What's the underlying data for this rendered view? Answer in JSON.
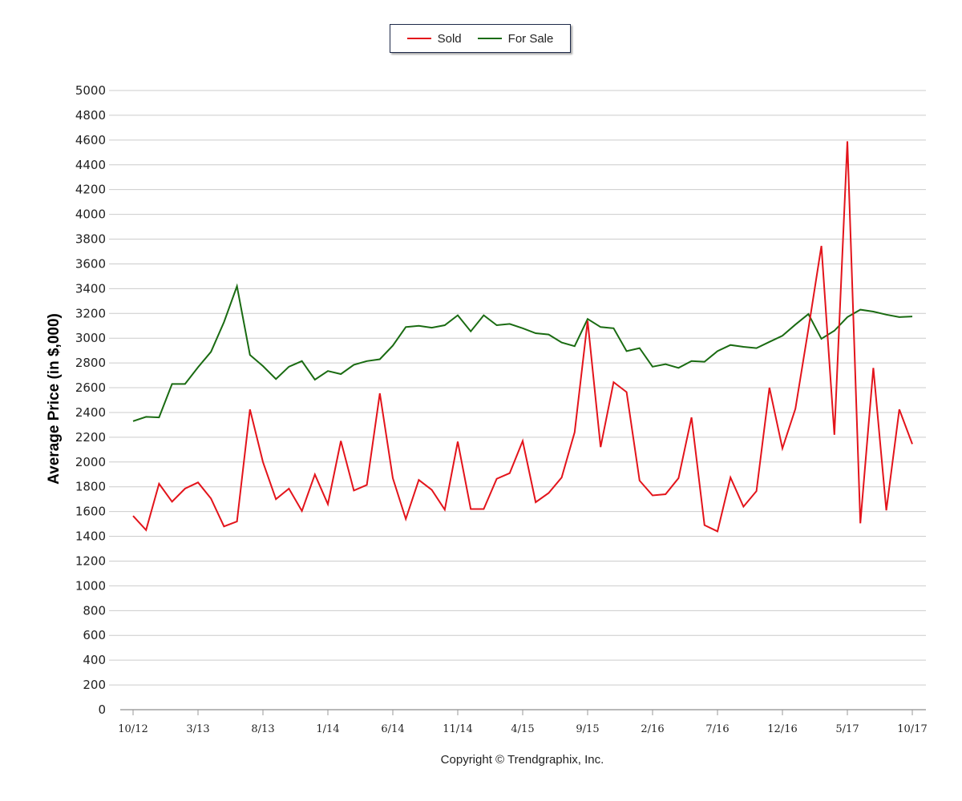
{
  "legend": {
    "sold_label": "Sold",
    "for_sale_label": "For Sale"
  },
  "copyright": "Copyright © Trendgraphix, Inc.",
  "colors": {
    "sold": "#e3141b",
    "for_sale": "#1a6b12",
    "grid": "#cccccc"
  },
  "chart_data": {
    "type": "line",
    "ylabel": "Average Price (in $,000)",
    "xlabel": "",
    "ylim": [
      0,
      5000
    ],
    "y_ticks": [
      0,
      200,
      400,
      600,
      800,
      1000,
      1200,
      1400,
      1600,
      1800,
      2000,
      2200,
      2400,
      2600,
      2800,
      3000,
      3200,
      3400,
      3600,
      3800,
      4000,
      4200,
      4400,
      4600,
      4800,
      5000
    ],
    "grid": true,
    "legend_position": "top-center",
    "x_tick_labels": [
      "10/12",
      "3/13",
      "8/13",
      "1/14",
      "6/14",
      "11/14",
      "4/15",
      "9/15",
      "2/16",
      "7/16",
      "12/16",
      "5/17",
      "10/17"
    ],
    "x": [
      "10/12",
      "11/12",
      "12/12",
      "1/13",
      "2/13",
      "3/13",
      "4/13",
      "5/13",
      "6/13",
      "7/13",
      "8/13",
      "9/13",
      "10/13",
      "11/13",
      "12/13",
      "1/14",
      "2/14",
      "3/14",
      "4/14",
      "5/14",
      "6/14",
      "7/14",
      "8/14",
      "9/14",
      "10/14",
      "11/14",
      "12/14",
      "1/15",
      "2/15",
      "3/15",
      "4/15",
      "5/15",
      "6/15",
      "7/15",
      "8/15",
      "9/15",
      "10/15",
      "11/15",
      "12/15",
      "1/16",
      "2/16",
      "3/16",
      "4/16",
      "5/16",
      "6/16",
      "7/16",
      "8/16",
      "9/16",
      "10/16",
      "11/16",
      "12/16",
      "1/17",
      "2/17",
      "3/17",
      "4/17",
      "5/17",
      "6/17",
      "7/17",
      "8/17",
      "9/17",
      "10/17"
    ],
    "series": [
      {
        "name": "Sold",
        "values": [
          1565,
          1450,
          1825,
          1680,
          1785,
          1835,
          1705,
          1480,
          1520,
          2425,
          2000,
          1700,
          1785,
          1605,
          1900,
          1660,
          2170,
          1770,
          1815,
          2555,
          1870,
          1540,
          1855,
          1775,
          1615,
          2165,
          1620,
          1620,
          1865,
          1910,
          2170,
          1675,
          1750,
          1875,
          2240,
          3140,
          2120,
          2645,
          2565,
          1850,
          1730,
          1740,
          1870,
          2360,
          1490,
          1440,
          1875,
          1640,
          1765,
          2600,
          2110,
          2430,
          3075,
          3745,
          2220,
          4590,
          1505,
          2760,
          1610,
          2425,
          2145
        ]
      },
      {
        "name": "For Sale",
        "values": [
          2330,
          2365,
          2360,
          2630,
          2630,
          2765,
          2890,
          3130,
          3420,
          2865,
          2775,
          2670,
          2770,
          2815,
          2665,
          2735,
          2710,
          2785,
          2815,
          2830,
          2940,
          3090,
          3100,
          3085,
          3105,
          3185,
          3055,
          3185,
          3105,
          3115,
          3080,
          3040,
          3030,
          2965,
          2935,
          3155,
          3090,
          3080,
          2895,
          2920,
          2770,
          2790,
          2760,
          2815,
          2810,
          2895,
          2945,
          2930,
          2920,
          2970,
          3020,
          3110,
          3195,
          2995,
          3060,
          3170,
          3230,
          3215,
          3190,
          3170,
          3175
        ]
      }
    ]
  }
}
